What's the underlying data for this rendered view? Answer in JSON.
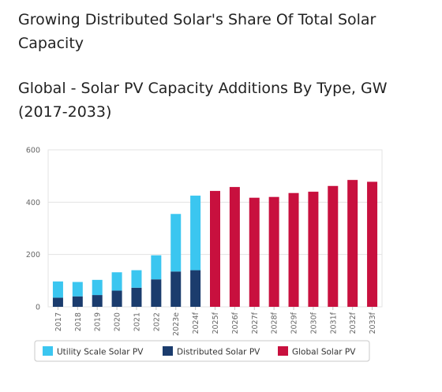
{
  "headings": {
    "section_title": "Growing Distributed Solar's Share Of Total Solar Capacity",
    "chart_title": "Global - Solar PV Capacity Additions By Type, GW (2017-2033)"
  },
  "colors": {
    "utility": "#3bc6f0",
    "distributed": "#1b3c6d",
    "global": "#c8103e",
    "grid": "#e3e3e3",
    "axis_text": "#666666"
  },
  "chart_data": {
    "type": "bar",
    "stacked": true,
    "categories": [
      "2017",
      "2018",
      "2019",
      "2020",
      "2021",
      "2022",
      "2023e",
      "2024f",
      "2025f",
      "2026f",
      "2027f",
      "2028f",
      "2029f",
      "2030f",
      "2031f",
      "2032f",
      "2033f"
    ],
    "series": [
      {
        "name": "Utility Scale Solar PV",
        "color": "#3bc6f0",
        "values": [
          62,
          55,
          58,
          70,
          67,
          92,
          220,
          285,
          null,
          null,
          null,
          null,
          null,
          null,
          null,
          null,
          null
        ]
      },
      {
        "name": "Distributed Solar PV",
        "color": "#1b3c6d",
        "values": [
          35,
          40,
          45,
          62,
          73,
          105,
          135,
          140,
          null,
          null,
          null,
          null,
          null,
          null,
          null,
          null,
          null
        ]
      },
      {
        "name": "Global Solar PV",
        "color": "#c8103e",
        "values": [
          null,
          null,
          null,
          null,
          null,
          null,
          null,
          null,
          443,
          458,
          417,
          420,
          435,
          440,
          462,
          485,
          478
        ]
      }
    ],
    "y_ticks": [
      0,
      200,
      400,
      600
    ],
    "ylim": [
      0,
      600
    ],
    "grid": true,
    "legend_position": "bottom"
  }
}
